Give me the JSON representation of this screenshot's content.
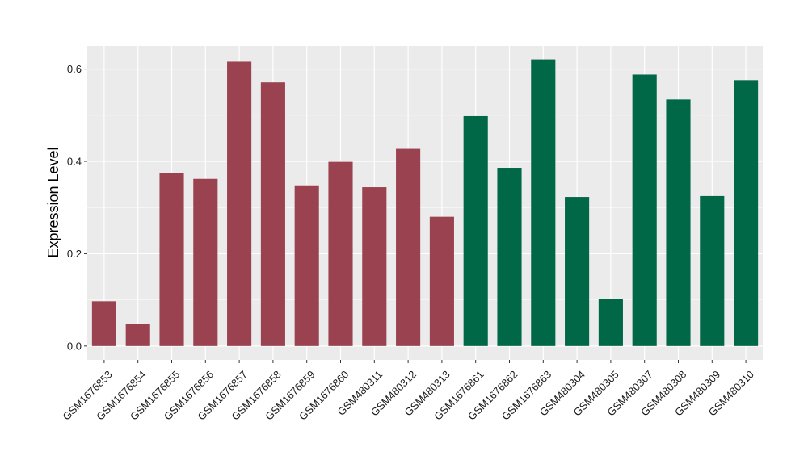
{
  "chart_data": {
    "type": "bar",
    "title": "",
    "xlabel": "",
    "ylabel": "Expression Level",
    "ylim": [
      -0.03,
      0.65
    ],
    "yticks": [
      0.0,
      0.2,
      0.4,
      0.6
    ],
    "ytick_labels": [
      "0.0",
      "0.2",
      "0.4",
      "0.6"
    ],
    "grid": true,
    "legend": "none",
    "categories": [
      "GSM1676853",
      "GSM1676854",
      "GSM1676855",
      "GSM1676856",
      "GSM1676857",
      "GSM1676858",
      "GSM1676859",
      "GSM1676860",
      "GSM480311",
      "GSM480312",
      "GSM480313",
      "GSM1676861",
      "GSM1676862",
      "GSM1676863",
      "GSM480304",
      "GSM480305",
      "GSM480307",
      "GSM480308",
      "GSM480309",
      "GSM480310"
    ],
    "values": [
      0.097,
      0.048,
      0.374,
      0.362,
      0.616,
      0.571,
      0.348,
      0.399,
      0.344,
      0.427,
      0.28,
      0.498,
      0.386,
      0.621,
      0.323,
      0.102,
      0.588,
      0.534,
      0.325,
      0.576
    ],
    "bar_colors": [
      "#9a4250",
      "#9a4250",
      "#9a4250",
      "#9a4250",
      "#9a4250",
      "#9a4250",
      "#9a4250",
      "#9a4250",
      "#9a4250",
      "#9a4250",
      "#9a4250",
      "#006747",
      "#006747",
      "#006747",
      "#006747",
      "#006747",
      "#006747",
      "#006747",
      "#006747",
      "#006747"
    ],
    "panel_color": "#ebebeb",
    "grid_color": "#ffffff"
  }
}
